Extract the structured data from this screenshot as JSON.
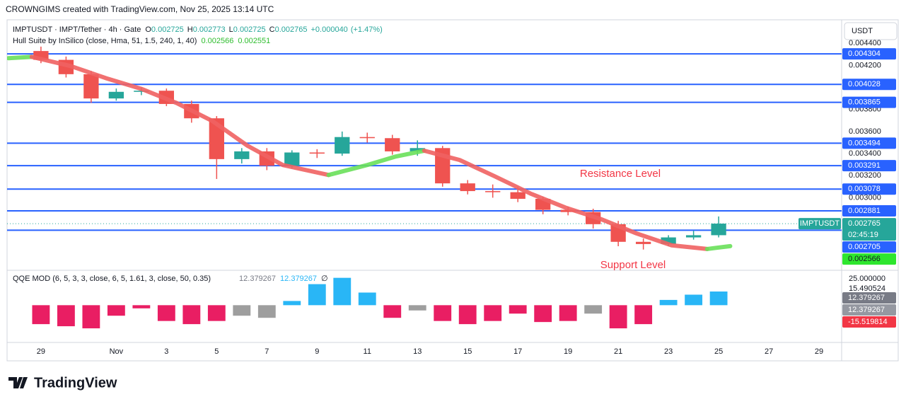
{
  "header": {
    "caption": "CROWNGIMS created with TradingView.com, Nov 25, 2025 13:14 UTC"
  },
  "footer": {
    "brand": "TradingView"
  },
  "chart_data": [
    {
      "type": "candlestick",
      "symbol_info": "IMPTUSDT · IMPT/Tether · 4h · Gate",
      "quote": [
        {
          "label": "O",
          "value": 0.002725
        },
        {
          "label": "H",
          "value": 0.002773
        },
        {
          "label": "L",
          "value": 0.002725
        },
        {
          "label": "C",
          "value": 0.002765
        }
      ],
      "change": {
        "value": 4e-05,
        "label": "+0.000040"
      },
      "change_percent": {
        "value": 1.47,
        "label": "(+1.47%)"
      },
      "price_unit": "USDT",
      "x": [
        0,
        1,
        2,
        3,
        4,
        5,
        6,
        7,
        8,
        9,
        10,
        11,
        12,
        13,
        14,
        15,
        16,
        17,
        18,
        19,
        20,
        21,
        22,
        23,
        24,
        25,
        26,
        27
      ],
      "open": [
        0.00433,
        0.00425,
        0.00412,
        0.0039,
        0.00396,
        0.00397,
        0.00385,
        0.00372,
        0.00335,
        0.00342,
        0.00329,
        0.00341,
        0.0034,
        0.00355,
        0.00354,
        0.00342,
        0.00345,
        0.00313,
        0.00306,
        0.00305,
        0.00299,
        0.00289,
        0.00287,
        0.00276,
        0.0026,
        0.00258,
        0.00264,
        0.00266
      ],
      "high": [
        0.00437,
        0.00428,
        0.00415,
        0.00399,
        0.004,
        0.00399,
        0.00388,
        0.00374,
        0.00345,
        0.00345,
        0.00343,
        0.00344,
        0.0036,
        0.00359,
        0.00357,
        0.00352,
        0.00347,
        0.00316,
        0.00312,
        0.0031,
        0.00301,
        0.00292,
        0.0029,
        0.00279,
        0.00263,
        0.00266,
        0.0027,
        0.00283
      ],
      "low": [
        0.00422,
        0.00409,
        0.00386,
        0.00388,
        0.00393,
        0.00383,
        0.00368,
        0.00317,
        0.00331,
        0.00325,
        0.00327,
        0.00336,
        0.00338,
        0.0035,
        0.00339,
        0.00338,
        0.0031,
        0.00303,
        0.003,
        0.00296,
        0.00285,
        0.00284,
        0.00272,
        0.00256,
        0.00253,
        0.00256,
        0.00262,
        0.00264
      ],
      "close": [
        0.00425,
        0.00412,
        0.0039,
        0.00396,
        0.00397,
        0.00385,
        0.00372,
        0.00335,
        0.00342,
        0.00329,
        0.00341,
        0.0034,
        0.00355,
        0.00354,
        0.00342,
        0.00345,
        0.00313,
        0.00306,
        0.00305,
        0.00299,
        0.00289,
        0.00287,
        0.00276,
        0.0026,
        0.00258,
        0.00264,
        0.00266,
        0.002765
      ],
      "up_color": "#26a69a",
      "down_color": "#ef5350",
      "xlim": [
        -1.35,
        31.9
      ],
      "xticks": [
        {
          "value": 0,
          "label": "29"
        },
        {
          "value": 3,
          "label": "Nov"
        },
        {
          "value": 5,
          "label": "3"
        },
        {
          "value": 7,
          "label": "5"
        },
        {
          "value": 9,
          "label": "7"
        },
        {
          "value": 11,
          "label": "9"
        },
        {
          "value": 13,
          "label": "11"
        },
        {
          "value": 15,
          "label": "13"
        },
        {
          "value": 17,
          "label": "15"
        },
        {
          "value": 19,
          "label": "17"
        },
        {
          "value": 21,
          "label": "19"
        },
        {
          "value": 23,
          "label": "21"
        },
        {
          "value": 25,
          "label": "23"
        },
        {
          "value": 27,
          "label": "25"
        },
        {
          "value": 29,
          "label": "27"
        },
        {
          "value": 31,
          "label": "29"
        }
      ],
      "ylim": [
        0.002342,
        0.004613
      ],
      "yticks": [
        {
          "value": 0.0044,
          "label": "0.004400"
        },
        {
          "value": 0.0042,
          "label": "0.004200"
        },
        {
          "value": 0.0038,
          "label": "0.003800"
        },
        {
          "value": 0.0036,
          "label": "0.003600"
        },
        {
          "value": 0.0034,
          "label": "0.003400"
        },
        {
          "value": 0.0032,
          "label": "0.003200"
        },
        {
          "value": 0.003,
          "label": "0.003000"
        }
      ],
      "levels": [
        0.004304,
        0.004028,
        0.003865,
        0.003494,
        0.003291,
        0.003078,
        0.002881,
        0.002705
      ],
      "level_color": "#2962ff",
      "annotations": [
        "Resistance Level",
        "Support Level"
      ],
      "last_price": {
        "symbol": "IMPTUSDT",
        "value": 0.002765,
        "countdown": "02:45:19",
        "color": "#26a69a"
      },
      "hull": {
        "name": "Hull Suite by InSilico (close, Hma, 51, 1.5, 240, 1, 40)",
        "legend_values": [
          0.002566,
          0.002551
        ],
        "segments": [
          {
            "color": "#69e05a",
            "x": [
              -1.3,
              -0.37
            ],
            "values": [
              0.004265,
              0.004277
            ]
          },
          {
            "color": "#f06262",
            "x": [
              -0.37,
              1.18,
              2.59,
              4.0,
              5.41,
              6.82,
              8.23,
              9.63,
              11.46
            ],
            "values": [
              0.004277,
              0.004194,
              0.004084,
              0.003987,
              0.003858,
              0.003697,
              0.003471,
              0.003297,
              0.003206
            ]
          },
          {
            "color": "#69e05a",
            "x": [
              11.46,
              13.01,
              14.14,
              15.27
            ],
            "values": [
              0.003206,
              0.003297,
              0.003374,
              0.003426
            ]
          },
          {
            "color": "#f06262",
            "x": [
              15.27,
              16.68,
              18.08,
              19.49,
              20.9,
              22.31,
              23.72,
              25.13,
              26.54
            ],
            "values": [
              0.003426,
              0.003342,
              0.003194,
              0.003039,
              0.00291,
              0.002806,
              0.002677,
              0.002568,
              0.002535
            ]
          },
          {
            "color": "#69e05a",
            "x": [
              26.54,
              27.46
            ],
            "values": [
              0.002535,
              0.002561
            ]
          }
        ]
      }
    },
    {
      "type": "bar",
      "title": "QQE MOD (6, 5, 3, 3, close, 6, 5, 1.61, 3, close, 50, 0.35)",
      "legend_values": [
        12.379267,
        12.379267
      ],
      "legend_symbol": "∅",
      "x": [
        0,
        1,
        2,
        3,
        4,
        5,
        6,
        7,
        8,
        9,
        10,
        11,
        12,
        13,
        14,
        15,
        16,
        17,
        18,
        19,
        20,
        21,
        22,
        23,
        24,
        25,
        26,
        27
      ],
      "values": [
        -18,
        -20,
        -22,
        -10,
        -3,
        -15,
        -18,
        -15,
        -10,
        -12,
        4,
        20,
        26,
        12,
        -12,
        -5,
        -15,
        -18,
        -15,
        -8,
        -16,
        -15,
        -8,
        -22,
        -18,
        5,
        10,
        13
      ],
      "colors": [
        "#e91e63",
        "#e91e63",
        "#e91e63",
        "#e91e63",
        "#e91e63",
        "#e91e63",
        "#e91e63",
        "#e91e63",
        "#9e9e9e",
        "#9e9e9e",
        "#29b6f6",
        "#29b6f6",
        "#29b6f6",
        "#29b6f6",
        "#e91e63",
        "#9e9e9e",
        "#e91e63",
        "#e91e63",
        "#e91e63",
        "#e91e63",
        "#e91e63",
        "#e91e63",
        "#9e9e9e",
        "#e91e63",
        "#e91e63",
        "#29b6f6",
        "#29b6f6",
        "#29b6f6"
      ],
      "ylim": [
        -35.4,
        32.5
      ],
      "yticks": [
        {
          "value": 25,
          "label": "25.000000"
        },
        15.490524
      ],
      "value_tags": [
        {
          "value": 12.379267,
          "color": "#787b86"
        },
        {
          "value": 12.379267,
          "color": "#9598a1"
        },
        {
          "value": -15.519814,
          "color": "#f23645"
        }
      ]
    }
  ]
}
